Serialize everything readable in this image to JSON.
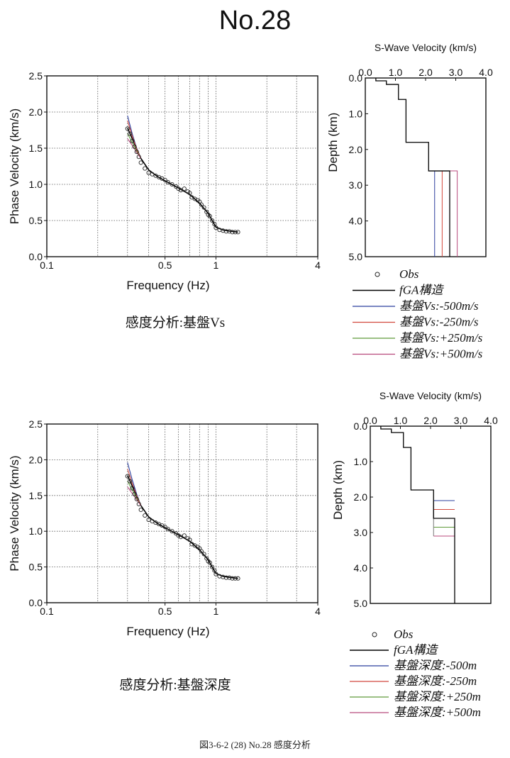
{
  "page": {
    "title": "No.28",
    "caption": "図3-6-2 (28)  No.28  感度分析"
  },
  "colors": {
    "obs": "#222222",
    "fga": "#000000",
    "minus500": "#2b3f9e",
    "minus250": "#d2483d",
    "plus250": "#5f9a3a",
    "plus500": "#b84a7d"
  },
  "chart_data": [
    {
      "id": "dispersion-vs",
      "type": "scatter",
      "xscale": "log",
      "xlabel": "Frequency (Hz)",
      "ylabel": "Phase Velocity (km/s)",
      "xlim": [
        0.1,
        4
      ],
      "ylim": [
        0.0,
        2.5
      ],
      "xticklabels": [
        "0.1",
        "0.5",
        "1",
        "4"
      ],
      "yticklabels": [
        "0.0",
        "0.5",
        "1.0",
        "1.5",
        "2.0",
        "2.5"
      ],
      "grid": true,
      "subtitle": "感度分析:基盤Vs",
      "obs": {
        "x": [
          0.3,
          0.31,
          0.32,
          0.33,
          0.34,
          0.35,
          0.36,
          0.38,
          0.4,
          0.42,
          0.44,
          0.46,
          0.48,
          0.5,
          0.52,
          0.55,
          0.58,
          0.6,
          0.62,
          0.65,
          0.68,
          0.7,
          0.72,
          0.75,
          0.78,
          0.8,
          0.82,
          0.85,
          0.88,
          0.9,
          0.92,
          0.95,
          0.98,
          1.0,
          1.05,
          1.1,
          1.15,
          1.2,
          1.25,
          1.3,
          1.35
        ],
        "y": [
          1.77,
          1.7,
          1.6,
          1.52,
          1.45,
          1.38,
          1.3,
          1.22,
          1.16,
          1.14,
          1.12,
          1.1,
          1.08,
          1.06,
          1.03,
          1.0,
          0.97,
          0.94,
          0.92,
          0.94,
          0.9,
          0.88,
          0.82,
          0.8,
          0.78,
          0.76,
          0.72,
          0.68,
          0.62,
          0.58,
          0.56,
          0.5,
          0.45,
          0.4,
          0.37,
          0.36,
          0.35,
          0.35,
          0.34,
          0.34,
          0.34
        ]
      },
      "series": [
        {
          "x": [
            0.3,
            0.33,
            0.36,
            0.4,
            0.45,
            0.5,
            0.6,
            0.7,
            0.8,
            0.9,
            0.95,
            1.0,
            1.1,
            1.2,
            1.35
          ],
          "y": [
            1.78,
            1.56,
            1.36,
            1.2,
            1.11,
            1.05,
            0.95,
            0.86,
            0.74,
            0.6,
            0.5,
            0.41,
            0.37,
            0.355,
            0.34
          ]
        },
        {
          "x": [
            0.3,
            0.32,
            0.34,
            0.36
          ],
          "y": [
            1.95,
            1.7,
            1.5,
            1.36
          ]
        },
        {
          "x": [
            0.3,
            0.32,
            0.34,
            0.36
          ],
          "y": [
            1.88,
            1.67,
            1.49,
            1.36
          ]
        },
        {
          "x": [
            0.3,
            0.32,
            0.34,
            0.36
          ],
          "y": [
            1.7,
            1.58,
            1.46,
            1.36
          ]
        },
        {
          "x": [
            0.3,
            0.32,
            0.34,
            0.36
          ],
          "y": [
            1.63,
            1.54,
            1.44,
            1.36
          ]
        }
      ]
    },
    {
      "id": "profile-vs",
      "type": "line",
      "title": "S-Wave Velocity (km/s)",
      "ylabel": "Depth (km)",
      "xlim": [
        0.0,
        4.0
      ],
      "ylim": [
        0.0,
        5.0
      ],
      "xticklabels": [
        "0.0",
        "1.0",
        "2.0",
        "3.0",
        "4.0"
      ],
      "yticklabels": [
        "0.0",
        "1.0",
        "2.0",
        "3.0",
        "4.0",
        "5.0"
      ],
      "grid": false,
      "layers": {
        "vs": [
          0.35,
          0.7,
          1.1,
          1.35,
          2.1
        ],
        "bottom": [
          0.08,
          0.18,
          0.6,
          1.8,
          2.6
        ]
      },
      "basement": {
        "depth": 2.6,
        "bottom": 5.0,
        "vs": [
          2.3,
          2.55,
          2.8,
          3.05,
          3.3
        ]
      },
      "legend": {
        "obs": "Obs",
        "fga": "fGA構造",
        "items": [
          "基盤Vs:-500m/s",
          "基盤Vs:-250m/s",
          "基盤Vs:+250m/s",
          "基盤Vs:+500m/s"
        ]
      }
    },
    {
      "id": "dispersion-depth",
      "type": "scatter",
      "xscale": "log",
      "xlabel": "Frequency (Hz)",
      "ylabel": "Phase Velocity (km/s)",
      "xlim": [
        0.1,
        4
      ],
      "ylim": [
        0.0,
        2.5
      ],
      "xticklabels": [
        "0.1",
        "0.5",
        "1",
        "4"
      ],
      "yticklabels": [
        "0.0",
        "0.5",
        "1.0",
        "1.5",
        "2.0",
        "2.5"
      ],
      "grid": true,
      "subtitle": "感度分析:基盤深度",
      "obs": {
        "x": [
          0.3,
          0.31,
          0.32,
          0.33,
          0.34,
          0.35,
          0.36,
          0.38,
          0.4,
          0.42,
          0.44,
          0.46,
          0.48,
          0.5,
          0.52,
          0.55,
          0.58,
          0.6,
          0.62,
          0.65,
          0.68,
          0.7,
          0.72,
          0.75,
          0.78,
          0.8,
          0.82,
          0.85,
          0.88,
          0.9,
          0.92,
          0.95,
          0.98,
          1.0,
          1.05,
          1.1,
          1.15,
          1.2,
          1.25,
          1.3,
          1.35
        ],
        "y": [
          1.77,
          1.7,
          1.6,
          1.52,
          1.45,
          1.38,
          1.3,
          1.22,
          1.16,
          1.14,
          1.12,
          1.1,
          1.08,
          1.06,
          1.03,
          1.0,
          0.97,
          0.94,
          0.92,
          0.94,
          0.9,
          0.88,
          0.82,
          0.8,
          0.78,
          0.76,
          0.72,
          0.68,
          0.62,
          0.58,
          0.56,
          0.5,
          0.45,
          0.4,
          0.37,
          0.36,
          0.35,
          0.35,
          0.34,
          0.34,
          0.34
        ]
      },
      "series": [
        {
          "x": [
            0.3,
            0.33,
            0.36,
            0.4,
            0.45,
            0.5,
            0.6,
            0.7,
            0.8,
            0.9,
            0.95,
            1.0,
            1.1,
            1.2,
            1.35
          ],
          "y": [
            1.78,
            1.56,
            1.36,
            1.2,
            1.11,
            1.05,
            0.95,
            0.86,
            0.74,
            0.6,
            0.5,
            0.41,
            0.37,
            0.355,
            0.34
          ]
        },
        {
          "x": [
            0.3,
            0.32,
            0.34,
            0.36
          ],
          "y": [
            1.96,
            1.72,
            1.52,
            1.36
          ]
        },
        {
          "x": [
            0.3,
            0.32,
            0.34,
            0.36
          ],
          "y": [
            1.87,
            1.67,
            1.5,
            1.36
          ]
        },
        {
          "x": [
            0.3,
            0.32,
            0.34,
            0.36
          ],
          "y": [
            1.7,
            1.58,
            1.46,
            1.36
          ]
        },
        {
          "x": [
            0.3,
            0.32,
            0.34,
            0.36
          ],
          "y": [
            1.62,
            1.53,
            1.44,
            1.36
          ]
        }
      ]
    },
    {
      "id": "profile-depth",
      "type": "line",
      "title": "S-Wave Velocity (km/s)",
      "ylabel": "Depth (km)",
      "xlim": [
        0.0,
        4.0
      ],
      "ylim": [
        0.0,
        5.0
      ],
      "xticklabels": [
        "0.0",
        "1.0",
        "2.0",
        "3.0",
        "4.0"
      ],
      "yticklabels": [
        "0.0",
        "1.0",
        "2.0",
        "3.0",
        "4.0",
        "5.0"
      ],
      "grid": false,
      "layers": {
        "vs": [
          0.35,
          0.7,
          1.1,
          1.35,
          2.1
        ],
        "bottom": [
          0.08,
          0.18,
          0.6,
          1.8,
          2.6
        ]
      },
      "basement": {
        "vs": 2.8,
        "bottom": 5.0,
        "depths": [
          2.1,
          2.35,
          2.85,
          3.1
        ]
      },
      "legend": {
        "obs": "Obs",
        "fga": "fGA構造",
        "items": [
          "基盤深度:-500m",
          "基盤深度:-250m",
          "基盤深度:+250m",
          "基盤深度:+500m"
        ]
      }
    }
  ]
}
